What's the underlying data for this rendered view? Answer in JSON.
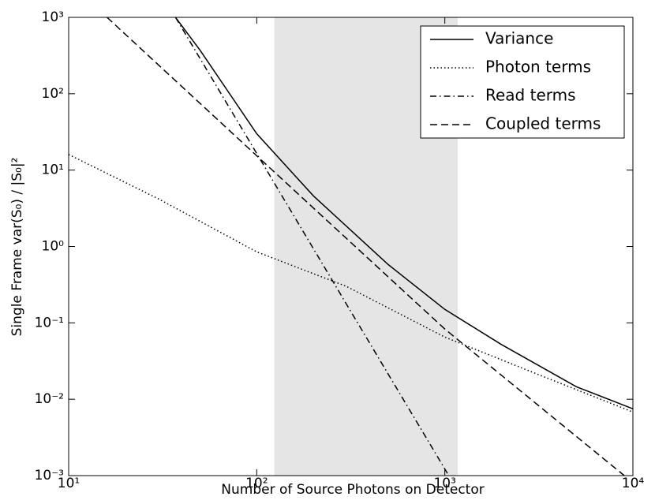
{
  "chart_data": {
    "type": "line",
    "xlabel": "Number of Source Photons on Detector",
    "ylabel": "Single Frame  var(S₀) / |S₀|²",
    "xscale": "log",
    "yscale": "log",
    "xlim": [
      10,
      10000
    ],
    "ylim": [
      0.001,
      1000
    ],
    "xticks": [
      {
        "value": 10,
        "label": "10¹"
      },
      {
        "value": 100,
        "label": "10²"
      },
      {
        "value": 1000,
        "label": "10³"
      },
      {
        "value": 10000,
        "label": "10⁴"
      }
    ],
    "yticks": [
      {
        "value": 0.001,
        "label": "10⁻³"
      },
      {
        "value": 0.01,
        "label": "10⁻²"
      },
      {
        "value": 0.1,
        "label": "10⁻¹"
      },
      {
        "value": 1,
        "label": "10⁰"
      },
      {
        "value": 10,
        "label": "10¹"
      },
      {
        "value": 100,
        "label": "10²"
      },
      {
        "value": 1000,
        "label": "10³"
      }
    ],
    "shaded_span": [
      124,
      1170
    ],
    "shade_color": "#e5e5e5",
    "legend": "upper right",
    "series": [
      {
        "name": "Variance",
        "color": "#000000",
        "style": "solid",
        "x": [
          37,
          50,
          100,
          200,
          500,
          1000,
          2000,
          5000,
          10000
        ],
        "values": [
          1000,
          370,
          30,
          4.6,
          0.58,
          0.15,
          0.052,
          0.0146,
          0.0075
        ]
      },
      {
        "name": "Photon terms",
        "color": "#000000",
        "style": "dotted",
        "x": [
          10,
          30,
          100,
          300,
          1000,
          3000,
          10000
        ],
        "values": [
          16,
          4.2,
          0.85,
          0.3,
          0.065,
          0.022,
          0.0068
        ]
      },
      {
        "name": "Read terms",
        "color": "#000000",
        "style": "dashdot",
        "x": [
          37,
          100,
          300,
          1050
        ],
        "values": [
          1000,
          16.5,
          0.176,
          0.001
        ]
      },
      {
        "name": "Coupled terms",
        "color": "#000000",
        "style": "dashed",
        "x": [
          16,
          100,
          1000,
          9000
        ],
        "values": [
          1000,
          15.4,
          0.083,
          0.001
        ]
      }
    ]
  }
}
